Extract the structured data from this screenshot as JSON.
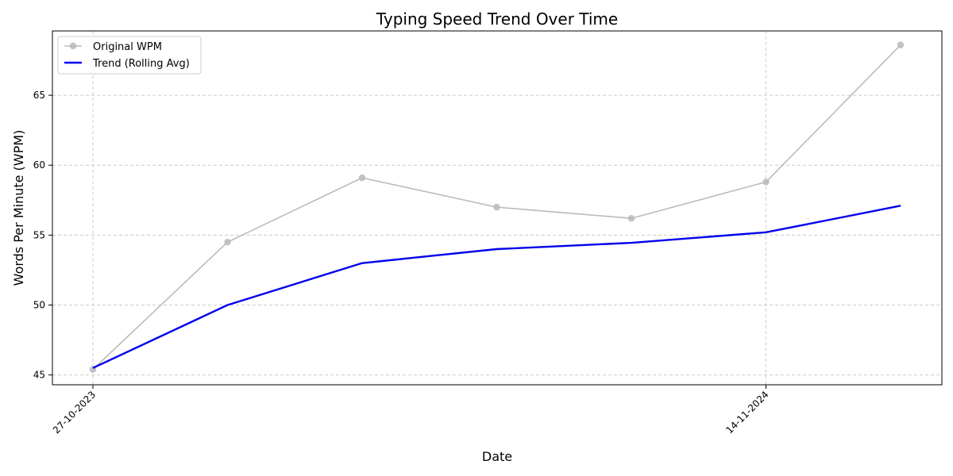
{
  "chart_data": {
    "type": "line",
    "title": "Typing Speed Trend Over Time",
    "xlabel": "Date",
    "ylabel": "Words Per Minute (WPM)",
    "x_tick_labels": [
      "27-10-2023",
      "14-11-2024"
    ],
    "y_ticks": [
      45,
      50,
      55,
      60,
      65
    ],
    "ylim": [
      44.3,
      69.6
    ],
    "grid": true,
    "legend_position": "top-left",
    "series": [
      {
        "name": "Original WPM",
        "color": "#bbbbbb",
        "marker": "circle",
        "values": [
          45.4,
          54.5,
          59.1,
          57.0,
          56.2,
          58.8,
          68.6
        ]
      },
      {
        "name": "Trend (Rolling Avg)",
        "color": "#0000ee",
        "marker": "none",
        "values": [
          45.5,
          50.0,
          53.0,
          54.0,
          54.45,
          55.2,
          57.1
        ]
      }
    ]
  }
}
